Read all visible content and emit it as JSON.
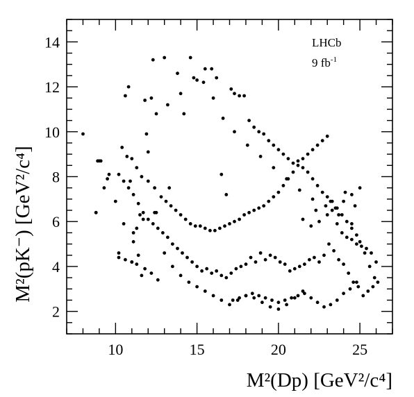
{
  "chart_data": {
    "type": "scatter",
    "xlabel": "M²(Dp) [GeV²/c⁴]",
    "ylabel": "M²(pK⁻) [GeV²/c⁴]",
    "xlim": [
      7,
      27
    ],
    "ylim": [
      1,
      15
    ],
    "x_ticks": [
      10,
      15,
      20,
      25
    ],
    "y_ticks": [
      2,
      4,
      6,
      8,
      10,
      12,
      14
    ],
    "grid": false,
    "annotations": {
      "experiment": "LHCb",
      "luminosity": "9 fb",
      "luminosity_sup": "-1"
    },
    "marker_color": "#000000",
    "series": [
      {
        "x": [
          8.0,
          8.8,
          8.9,
          9.1,
          9.3,
          9.5,
          8.8,
          10.0,
          10.2,
          10.5,
          10.6,
          10.8,
          10.9,
          11.1,
          11.3,
          11.6,
          11.8,
          11.9,
          12.2,
          12.4,
          12.5,
          11.0,
          11.1,
          11.3,
          11.5,
          11.7,
          12.0,
          12.3,
          13.0,
          13.3,
          13.8,
          14.2,
          14.6,
          15.0,
          15.5,
          15.9,
          16.2,
          16.5,
          16.8,
          17.1,
          17.3,
          17.6,
          17.9,
          18.2,
          18.5,
          18.8,
          19.1,
          19.4,
          19.7,
          20.0,
          20.3,
          20.6,
          20.9,
          21.2,
          21.5,
          21.8,
          22.1,
          22.4,
          22.7,
          23.0,
          23.3,
          23.6,
          23.9,
          24.2,
          24.5,
          24.8,
          25.0,
          25.3,
          25.6,
          25.9,
          26.1,
          25.8,
          25.5,
          25.2,
          24.9,
          24.6,
          24.3,
          24.0,
          23.7,
          23.4,
          23.1,
          22.8,
          22.5,
          22.2,
          21.9,
          21.6,
          21.3,
          21.0,
          20.7,
          20.4,
          20.1,
          19.8,
          19.5,
          19.2,
          18.9,
          18.6,
          18.3,
          18.0,
          17.7,
          17.4,
          17.1,
          16.8,
          16.5,
          16.2,
          15.9,
          15.6,
          15.3,
          15.0,
          14.7,
          14.4,
          14.1,
          13.8,
          13.5,
          13.2,
          12.9,
          12.6,
          12.3,
          12.0,
          11.7,
          11.4,
          11.1,
          10.8,
          10.5,
          10.2,
          10.4,
          10.7,
          11.0,
          11.3,
          11.6,
          12.0,
          12.4,
          12.8,
          13.1,
          13.4,
          13.7,
          14.0,
          14.3,
          14.6,
          14.9,
          15.2,
          15.5,
          15.8,
          16.1,
          16.4,
          16.7,
          17.0,
          17.3,
          17.6,
          17.9,
          18.2,
          18.5,
          18.8,
          19.1,
          19.4,
          19.7,
          20.0,
          20.3,
          20.6,
          20.9,
          21.2,
          21.5,
          21.8,
          22.1,
          22.4,
          22.7,
          23.0,
          23.3,
          23.6,
          23.9,
          24.2,
          24.5,
          24.8,
          25.1,
          25.4,
          25.7,
          26.0,
          22.0,
          22.5,
          23.0,
          23.5,
          24.0,
          24.5,
          25.0,
          21.5,
          22.3,
          23.2,
          24.1,
          24.7,
          17.2,
          17.6,
          18.0,
          18.4,
          18.8,
          19.2,
          19.6,
          20.0,
          20.4,
          20.8,
          21.2,
          21.6,
          22.0,
          22.4,
          22.8,
          23.2,
          23.6,
          24.0,
          24.4,
          24.8,
          13.0,
          13.5,
          14.0,
          14.5,
          15.0,
          15.5,
          16.0,
          16.5,
          17.0,
          17.5,
          18.0,
          18.5,
          19.0,
          19.5,
          20.0,
          20.5,
          21.0,
          21.5,
          10.2,
          10.6,
          11.0,
          11.4,
          11.8,
          12.2,
          12.6,
          9.0,
          9.6,
          12.5,
          13.2,
          14.0,
          14.8,
          15.4,
          16.0,
          16.6,
          17.3,
          18.1,
          18.9,
          19.7,
          20.5,
          21.3,
          22.1,
          22.9,
          23.7,
          24.5
        ],
        "y": [
          9.9,
          6.4,
          8.7,
          8.7,
          7.5,
          7.9,
          6.4,
          6.9,
          4.4,
          5.9,
          11.6,
          12.0,
          7.8,
          5.1,
          4.1,
          3.6,
          11.4,
          9.9,
          11.5,
          6.4,
          6.4,
          4.2,
          5.5,
          5.7,
          6.3,
          6.1,
          9.1,
          13.2,
          13.3,
          7.5,
          12.6,
          10.8,
          13.3,
          12.3,
          12.8,
          12.8,
          12.4,
          8.1,
          7.2,
          11.9,
          11.7,
          11.6,
          11.6,
          10.5,
          10.2,
          10.0,
          9.9,
          9.6,
          9.4,
          9.2,
          9.0,
          8.8,
          8.6,
          8.7,
          8.4,
          8.2,
          7.9,
          7.6,
          7.3,
          7.1,
          6.9,
          6.6,
          6.3,
          6.0,
          5.7,
          5.4,
          5.1,
          4.6,
          4.0,
          3.5,
          3.3,
          3.1,
          2.9,
          2.7,
          3.1,
          3.3,
          3.7,
          4.1,
          4.3,
          4.7,
          5.0,
          4.5,
          4.2,
          4.4,
          4.3,
          4.1,
          4.0,
          3.9,
          3.8,
          4.1,
          4.2,
          4.4,
          4.5,
          4.3,
          4.6,
          4.2,
          4.4,
          4.1,
          4.0,
          3.9,
          3.7,
          3.5,
          3.6,
          3.8,
          3.7,
          3.9,
          3.8,
          4.0,
          4.2,
          4.4,
          4.6,
          4.8,
          5.0,
          5.3,
          5.5,
          5.7,
          5.9,
          6.1,
          6.4,
          6.8,
          7.2,
          7.5,
          7.8,
          8.1,
          9.3,
          8.9,
          8.8,
          8.4,
          8.0,
          7.8,
          7.5,
          7.1,
          6.9,
          6.7,
          6.5,
          6.3,
          6.1,
          5.9,
          5.8,
          5.8,
          5.7,
          5.6,
          5.6,
          5.7,
          5.8,
          5.9,
          6.0,
          6.1,
          6.3,
          6.4,
          6.5,
          6.6,
          6.7,
          6.9,
          7.1,
          7.3,
          7.6,
          7.9,
          8.2,
          8.5,
          8.8,
          9.0,
          9.2,
          9.4,
          9.6,
          9.8,
          6.5,
          5.9,
          5.5,
          5.3,
          5.2,
          5.0,
          4.9,
          4.8,
          4.6,
          4.2,
          5.8,
          6.0,
          6.3,
          6.6,
          6.9,
          7.2,
          7.5,
          6.1,
          6.5,
          6.9,
          7.3,
          6.7,
          2.5,
          2.6,
          2.7,
          2.8,
          2.7,
          2.6,
          2.5,
          2.4,
          2.5,
          2.6,
          2.7,
          2.8,
          2.6,
          2.4,
          2.2,
          2.3,
          2.5,
          2.8,
          3.0,
          3.3,
          4.6,
          4.0,
          3.6,
          3.3,
          3.1,
          2.9,
          2.7,
          2.5,
          2.3,
          2.5,
          2.7,
          2.6,
          2.4,
          2.2,
          2.1,
          2.3,
          2.6,
          2.9,
          4.6,
          4.3,
          4.2,
          4.5,
          3.9,
          3.7,
          3.4,
          8.7,
          8.1,
          10.8,
          11.2,
          11.7,
          12.4,
          12.2,
          11.5,
          10.6,
          10.0,
          9.4,
          8.9,
          8.4,
          7.9,
          7.4,
          7.0,
          6.7,
          6.3,
          5.9
        ]
      }
    ]
  }
}
